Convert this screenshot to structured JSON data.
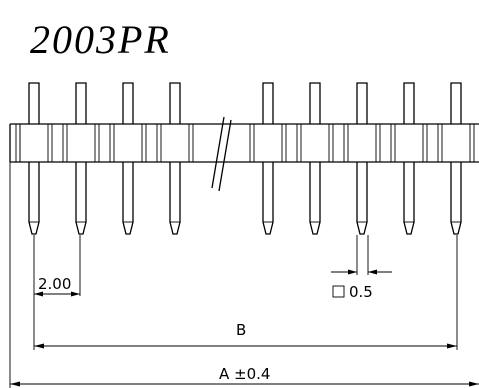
{
  "title": "2003PR",
  "dimensions": {
    "pitch": "2.00",
    "pin_size": "0.5",
    "row_length": "B",
    "overall_length": "A ±0.4"
  },
  "left_pins": 4,
  "right_pins": 5,
  "symbols": [
    "square-icon",
    "break-mark"
  ]
}
